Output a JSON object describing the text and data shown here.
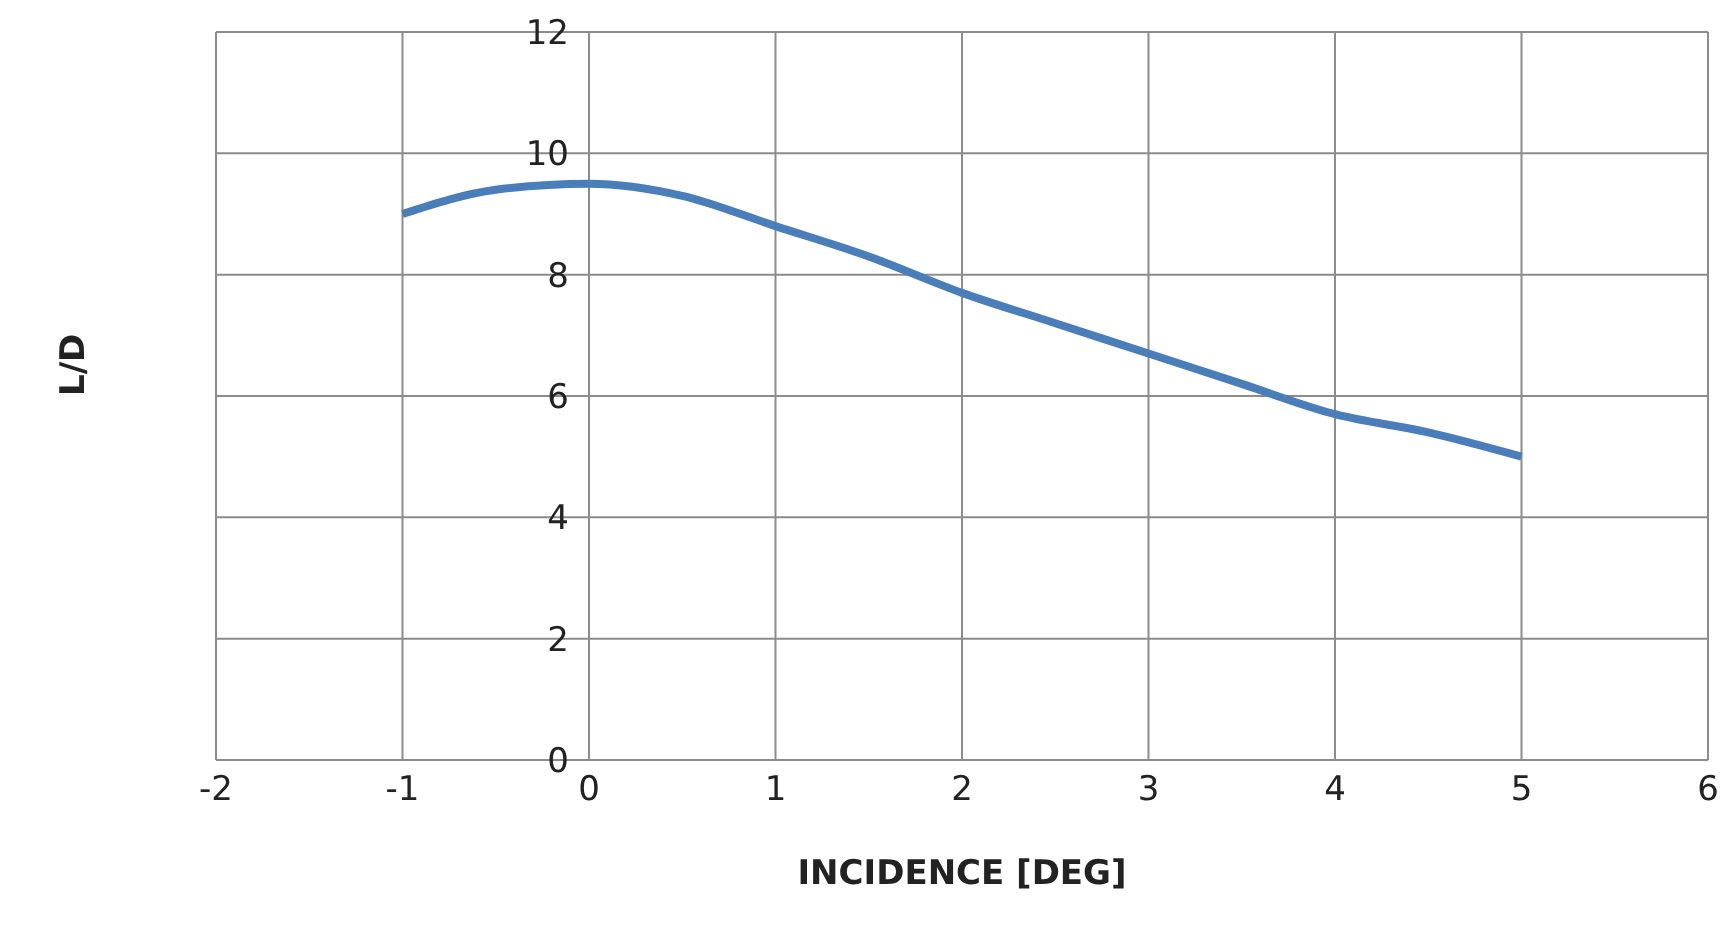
{
  "chart_data": {
    "type": "line",
    "xlabel": "INCIDENCE [DEG]",
    "ylabel": "L/D",
    "x": [
      -1,
      -0.5,
      0,
      0.5,
      1,
      1.5,
      2,
      2.5,
      3,
      3.5,
      4,
      4.5,
      5
    ],
    "series": [
      {
        "color": "#4a7ebb",
        "values": [
          9.0,
          9.4,
          9.5,
          9.3,
          8.8,
          8.3,
          7.7,
          7.2,
          6.7,
          6.2,
          5.7,
          5.4,
          5.0
        ]
      }
    ],
    "xlim": [
      -2,
      6
    ],
    "xticks": [
      -2,
      -1,
      0,
      1,
      2,
      3,
      4,
      5,
      6
    ],
    "ylim": [
      0,
      12
    ],
    "yticks": [
      0,
      2,
      4,
      6,
      8,
      10,
      12
    ],
    "grid": true,
    "marker": "none",
    "line_style": "solid"
  }
}
